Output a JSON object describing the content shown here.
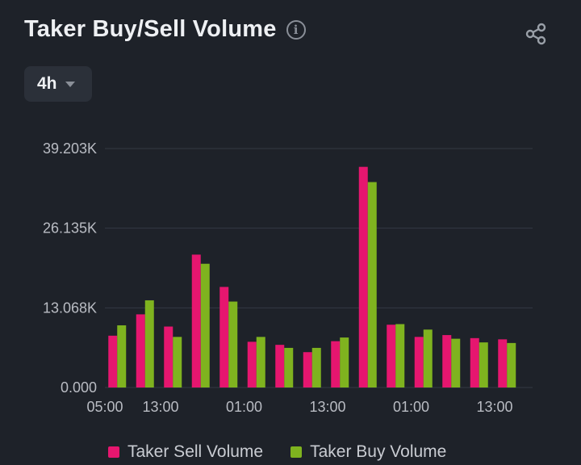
{
  "header": {
    "title": "Taker Buy/Sell Volume",
    "info_icon": "info-icon",
    "share_icon": "share-icon"
  },
  "interval": {
    "selected": "4h"
  },
  "colors": {
    "sell": "#e6166f",
    "buy": "#7fb31f",
    "grid": "#343943",
    "axis_text": "#b9bcc3"
  },
  "chart_data": {
    "type": "bar",
    "title": "Taker Buy/Sell Volume",
    "ylim": [
      0,
      39.203
    ],
    "y_ticks": [
      "0.000",
      "13.068K",
      "26.135K",
      "39.203K"
    ],
    "y_tick_values": [
      0,
      13.068,
      26.135,
      39.203
    ],
    "x_ticks": [
      "05:00",
      "13:00",
      "01:00",
      "13:00",
      "01:00",
      "13:00"
    ],
    "x_tick_indices": [
      0,
      2,
      5,
      8,
      11,
      14
    ],
    "series": [
      {
        "name": "Taker Sell Volume",
        "values": [
          8.5,
          12.0,
          10.0,
          21.8,
          16.5,
          7.5,
          7.0,
          5.8,
          7.6,
          36.2,
          10.3,
          8.3,
          8.6,
          8.1,
          7.9
        ]
      },
      {
        "name": "Taker Buy Volume",
        "values": [
          10.2,
          14.3,
          8.3,
          20.3,
          14.1,
          8.3,
          6.5,
          6.5,
          8.2,
          33.7,
          10.4,
          9.5,
          8.0,
          7.4,
          7.3
        ]
      }
    ]
  },
  "legend": {
    "sell_label": "Taker Sell Volume",
    "buy_label": "Taker Buy Volume"
  }
}
